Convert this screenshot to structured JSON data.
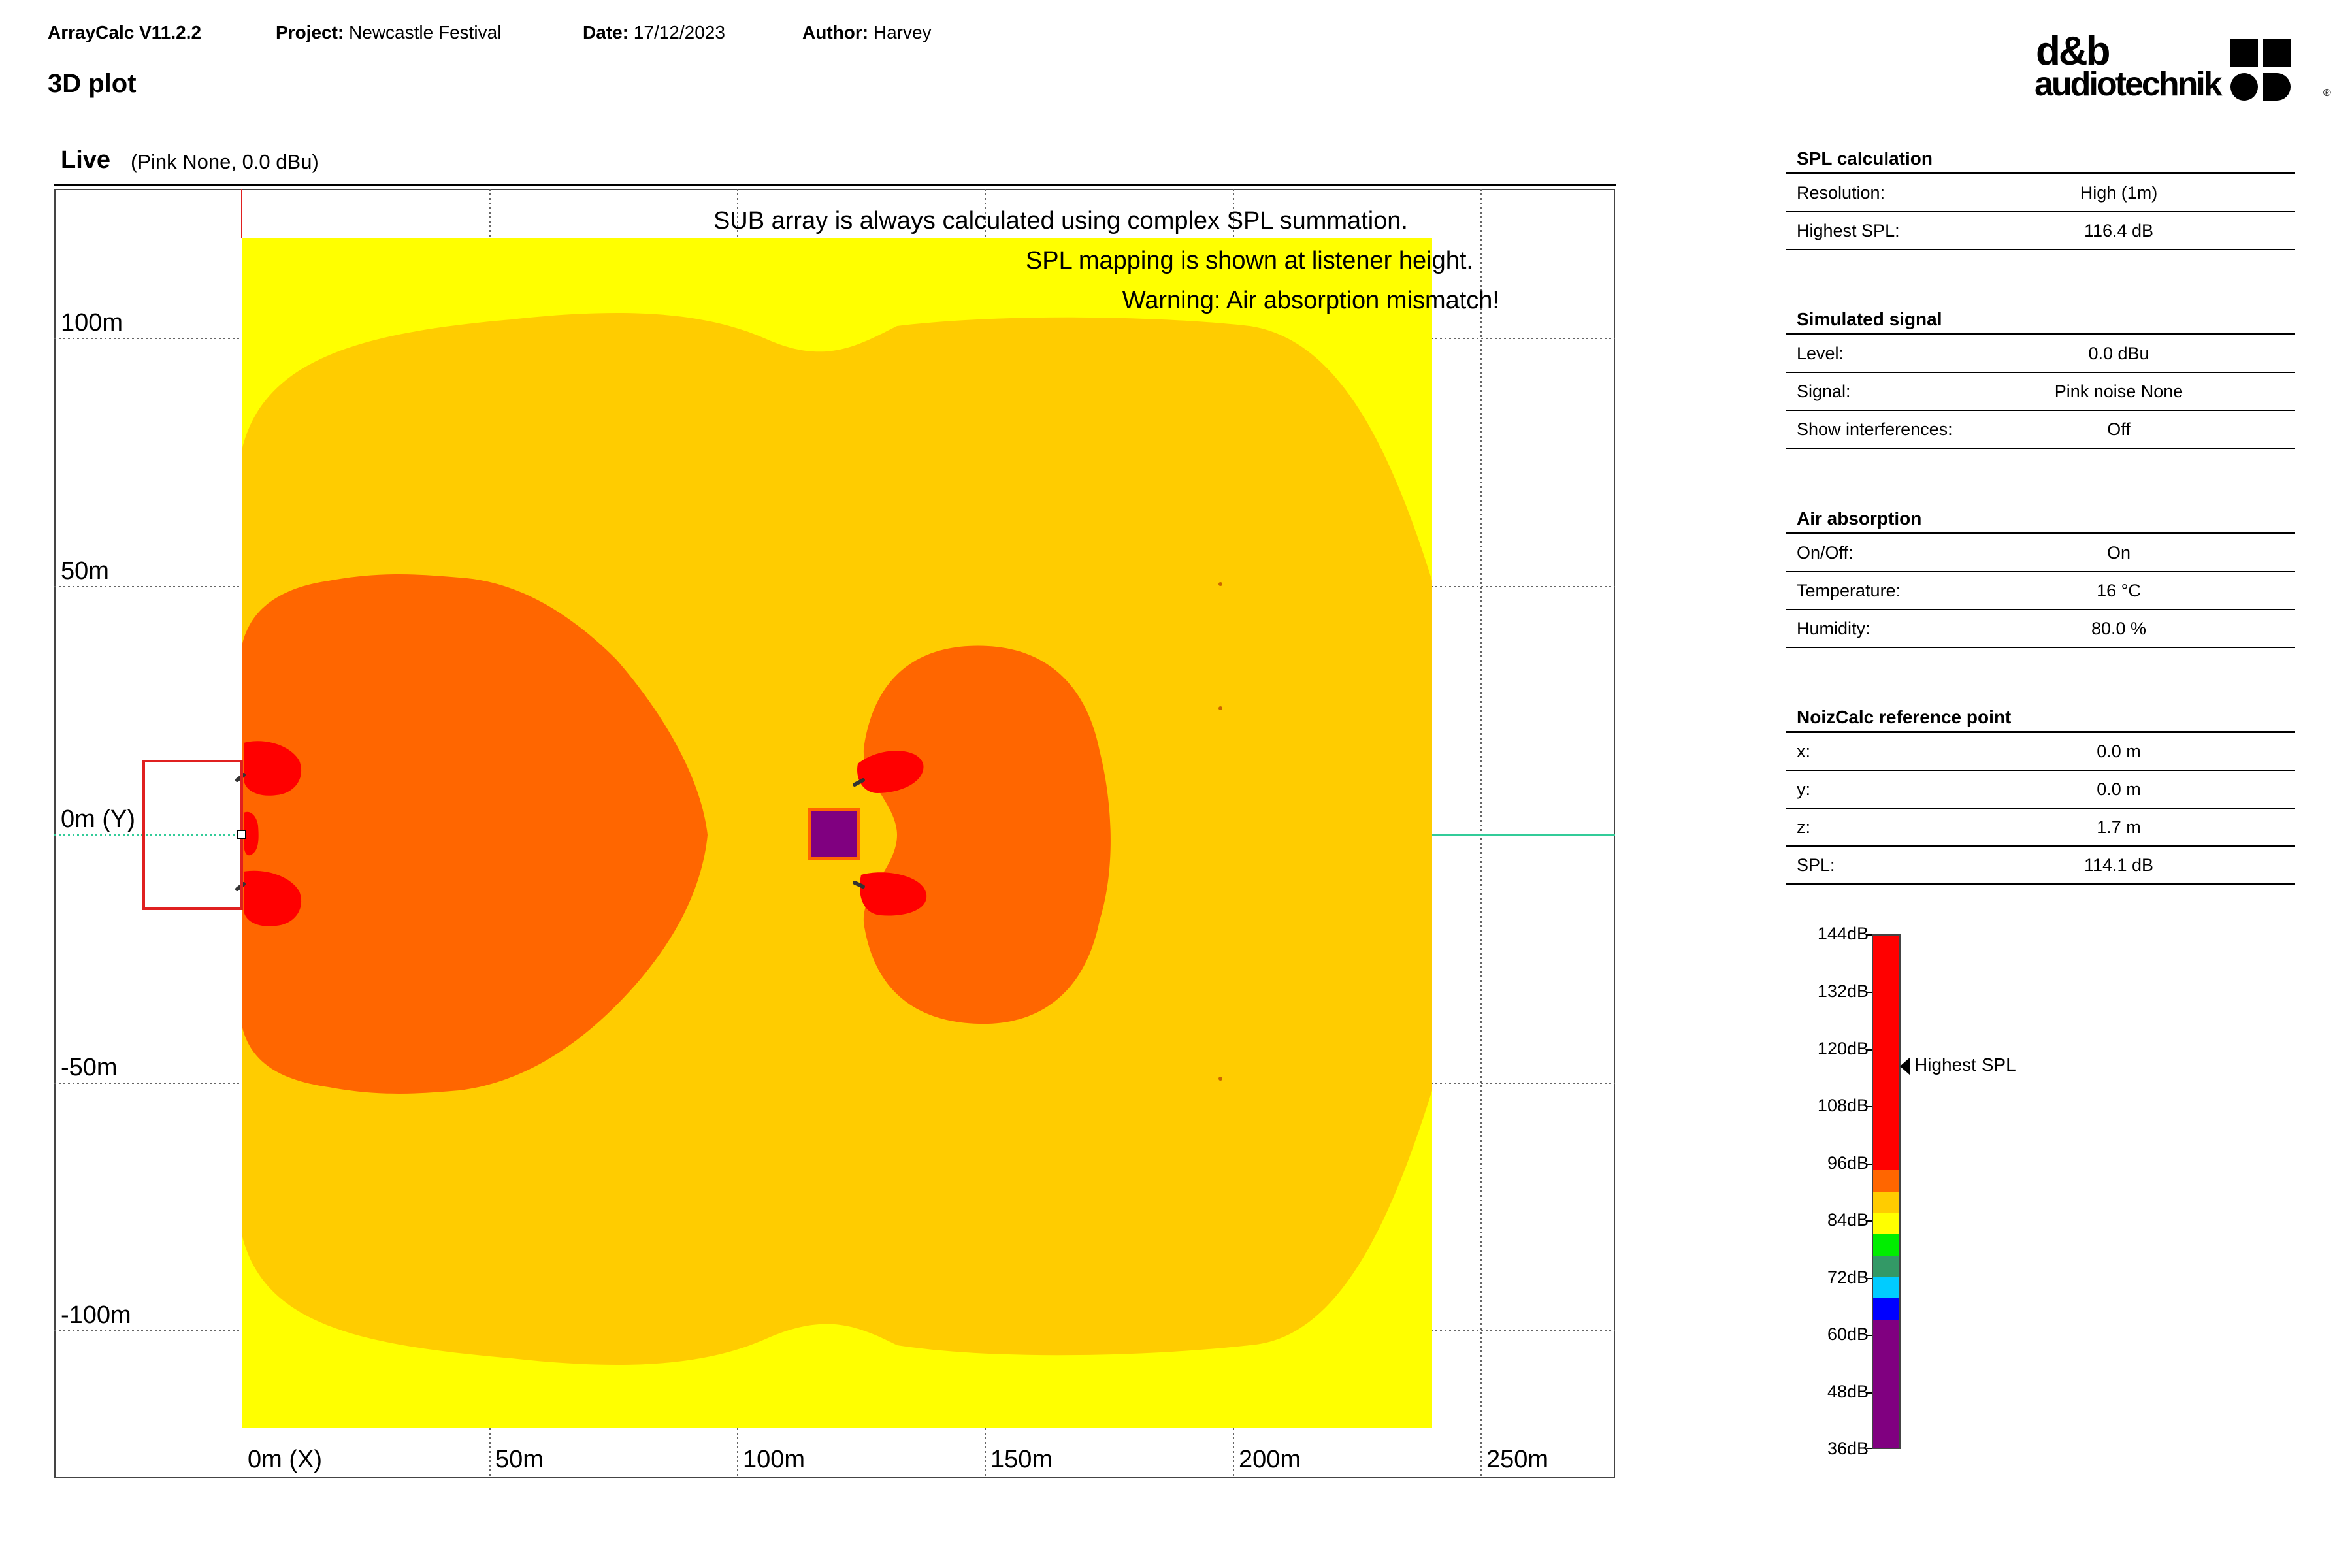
{
  "header": {
    "app": "ArrayCalc V11.2.2",
    "project_label": "Project:",
    "project": "Newcastle Festival",
    "date_label": "Date:",
    "date": "17/12/2023",
    "author_label": "Author:",
    "author": "Harvey",
    "page_title": "3D plot"
  },
  "logo": {
    "line1": "d&b",
    "line2": "audiotechnik",
    "registered": "®"
  },
  "plot": {
    "title": "Live",
    "subtitle": "(Pink None, 0.0 dBu)",
    "y_labels": [
      "100m",
      "50m",
      "0m (Y)",
      "-50m",
      "-100m"
    ],
    "x_labels": [
      "0m (X)",
      "50m",
      "100m",
      "150m",
      "200m",
      "250m"
    ],
    "messages": [
      "SUB array is always calculated using complex SPL summation.",
      "SPL mapping is shown at listener height.",
      "Warning: Air absorption mismatch!"
    ],
    "colors": {
      "yellow": "#ffff00",
      "light_orange": "#ffcc00",
      "orange": "#ff6600",
      "red": "#ff0000",
      "purple": "#800080"
    }
  },
  "panel": {
    "spl_calculation": {
      "title": "SPL calculation",
      "rows": [
        {
          "k": "Resolution:",
          "v": "High (1m)"
        },
        {
          "k": "Highest SPL:",
          "v": "116.4 dB"
        }
      ]
    },
    "simulated_signal": {
      "title": "Simulated signal",
      "rows": [
        {
          "k": "Level:",
          "v": "0.0 dBu"
        },
        {
          "k": "Signal:",
          "v": "Pink noise None"
        },
        {
          "k": "Show interferences:",
          "v": "Off"
        }
      ]
    },
    "air_absorption": {
      "title": "Air absorption",
      "rows": [
        {
          "k": "On/Off:",
          "v": "On"
        },
        {
          "k": "Temperature:",
          "v": "16 °C"
        },
        {
          "k": "Humidity:",
          "v": "80.0 %"
        }
      ]
    },
    "noizcalc": {
      "title": "NoizCalc reference point",
      "rows": [
        {
          "k": "x:",
          "v": "0.0 m"
        },
        {
          "k": "y:",
          "v": "0.0 m"
        },
        {
          "k": "z:",
          "v": "1.7 m"
        },
        {
          "k": "SPL:",
          "v": "114.1 dB"
        }
      ]
    }
  },
  "scale": {
    "labels": [
      "144dB",
      "132dB",
      "120dB",
      "108dB",
      "96dB",
      "84dB",
      "72dB",
      "60dB",
      "48dB",
      "36dB"
    ],
    "highest_label": "Highest SPL",
    "bands": [
      {
        "color": "#ff0000",
        "units": 5.5
      },
      {
        "color": "#ff6600",
        "units": 0.5
      },
      {
        "color": "#ffcc00",
        "units": 0.5
      },
      {
        "color": "#ffff00",
        "units": 0.5
      },
      {
        "color": "#00ee00",
        "units": 0.5
      },
      {
        "color": "#339966",
        "units": 0.5
      },
      {
        "color": "#00ccff",
        "units": 0.5
      },
      {
        "color": "#0000ff",
        "units": 0.5
      },
      {
        "color": "#800080",
        "units": 3.0
      }
    ]
  }
}
